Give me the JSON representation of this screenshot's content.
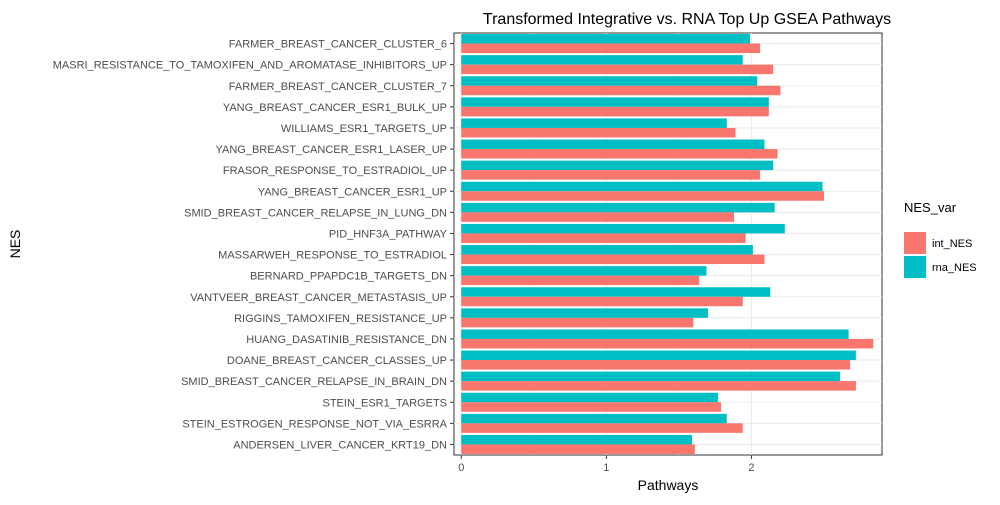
{
  "chart_data": {
    "type": "bar",
    "orientation": "horizontal",
    "title": "Transformed Integrative vs. RNA Top Up GSEA Pathways",
    "xlabel": "Pathways",
    "ylabel": "NES",
    "xlim": [
      -0.05,
      2.9
    ],
    "xticks": [
      "0",
      "1",
      "2"
    ],
    "xtick_values": [
      0,
      1,
      2
    ],
    "grid": true,
    "legend_title": "NES_var",
    "legend_position": "right",
    "categories": [
      "FARMER_BREAST_CANCER_CLUSTER_6",
      "MASRI_RESISTANCE_TO_TAMOXIFEN_AND_AROMATASE_INHIBITORS_UP",
      "FARMER_BREAST_CANCER_CLUSTER_7",
      "YANG_BREAST_CANCER_ESR1_BULK_UP",
      "WILLIAMS_ESR1_TARGETS_UP",
      "YANG_BREAST_CANCER_ESR1_LASER_UP",
      "FRASOR_RESPONSE_TO_ESTRADIOL_UP",
      "YANG_BREAST_CANCER_ESR1_UP",
      "SMID_BREAST_CANCER_RELAPSE_IN_LUNG_DN",
      "PID_HNF3A_PATHWAY",
      "MASSARWEH_RESPONSE_TO_ESTRADIOL",
      "BERNARD_PPAPDC1B_TARGETS_DN",
      "VANTVEER_BREAST_CANCER_METASTASIS_UP",
      "RIGGINS_TAMOXIFEN_RESISTANCE_UP",
      "HUANG_DASATINIB_RESISTANCE_DN",
      "DOANE_BREAST_CANCER_CLASSES_UP",
      "SMID_BREAST_CANCER_RELAPSE_IN_BRAIN_DN",
      "STEIN_ESR1_TARGETS",
      "STEIN_ESTROGEN_RESPONSE_NOT_VIA_ESRRA",
      "ANDERSEN_LIVER_CANCER_KRT19_DN"
    ],
    "series": [
      {
        "name": "int_NES",
        "color": "#F8766D",
        "values": [
          2.06,
          2.15,
          2.2,
          2.12,
          1.89,
          2.18,
          2.06,
          2.5,
          1.88,
          1.96,
          2.09,
          1.64,
          1.94,
          1.6,
          2.84,
          2.68,
          2.72,
          1.79,
          1.94,
          1.61
        ]
      },
      {
        "name": "rna_NES",
        "color": "#00BFC4",
        "values": [
          1.99,
          1.94,
          2.04,
          2.12,
          1.83,
          2.09,
          2.15,
          2.49,
          2.16,
          2.23,
          2.01,
          1.69,
          2.13,
          1.7,
          2.67,
          2.72,
          2.61,
          1.77,
          1.83,
          1.59
        ]
      }
    ]
  }
}
